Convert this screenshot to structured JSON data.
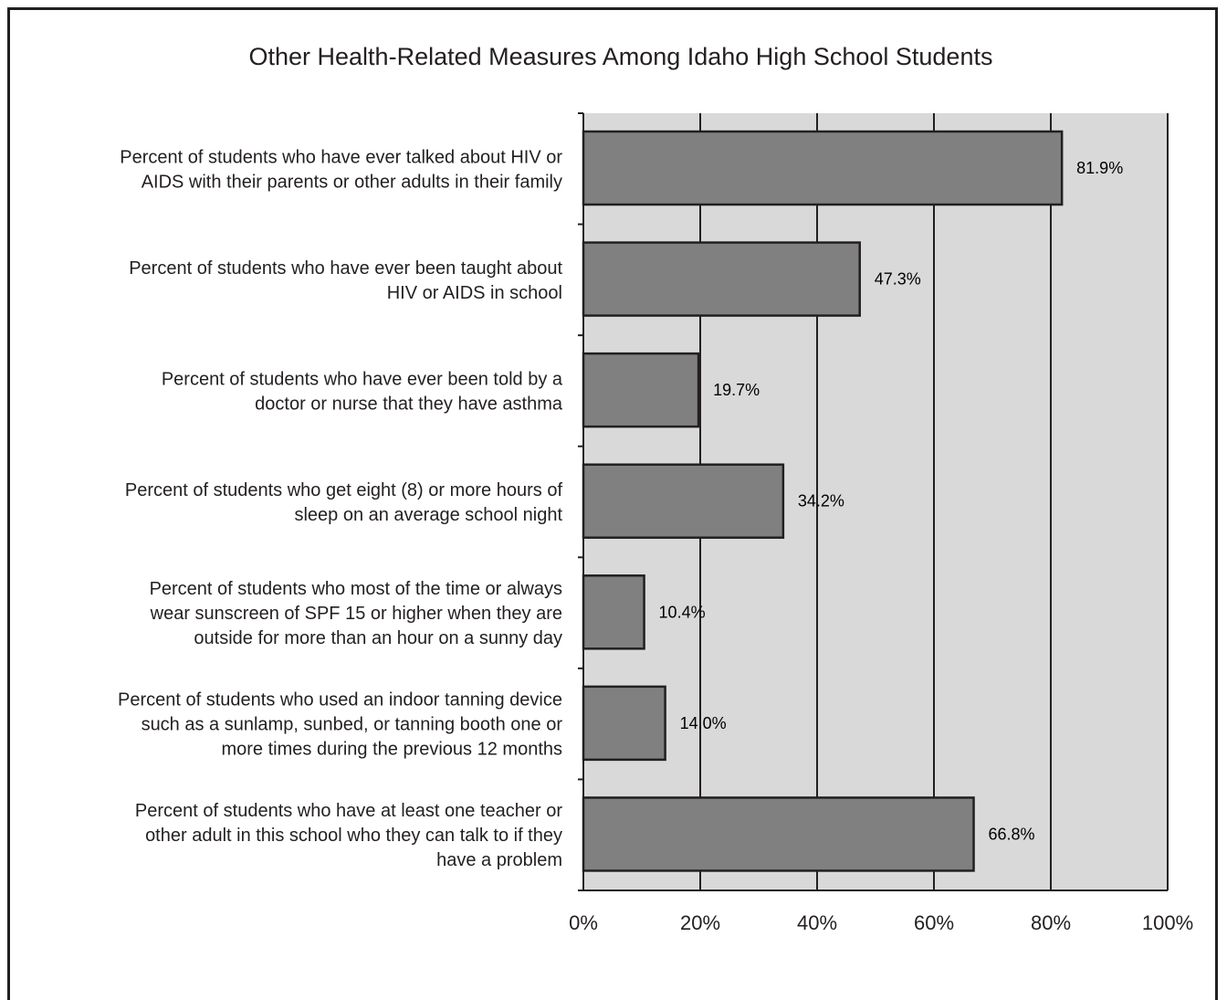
{
  "chart_data": {
    "type": "bar",
    "orientation": "horizontal",
    "title": "Other Health-Related Measures Among Idaho High School Students",
    "categories": [
      [
        "Percent of students who have ever talked about HIV or",
        "AIDS with their parents or other adults in their family"
      ],
      [
        "Percent of students who have ever been taught about",
        "HIV or AIDS in school"
      ],
      [
        "Percent of students who have ever been told by a",
        "doctor or nurse that they have asthma"
      ],
      [
        "Percent of students who get eight (8) or more hours of",
        "sleep on an average school night"
      ],
      [
        "Percent of students who most of the time or always",
        "wear sunscreen of SPF 15 or higher when they are",
        "outside for more than an hour on a sunny day"
      ],
      [
        "Percent of students who used an indoor tanning device",
        "such as a sunlamp, sunbed, or tanning booth one or",
        "more times during the previous 12 months"
      ],
      [
        "Percent of students who have at least one teacher or",
        "other adult in this school who they can talk to if they",
        "have a problem"
      ]
    ],
    "values": [
      81.9,
      47.3,
      19.7,
      34.2,
      10.4,
      14.0,
      66.8
    ],
    "value_labels": [
      "81.9%",
      "47.3%",
      "19.7%",
      "34.2%",
      "10.4%",
      "14.0%",
      "66.8%"
    ],
    "xlim": [
      0,
      100
    ],
    "xticks": [
      0,
      20,
      40,
      60,
      80,
      100
    ],
    "xtick_labels": [
      "0%",
      "20%",
      "40%",
      "60%",
      "80%",
      "100%"
    ],
    "grid": true,
    "colors": {
      "bar": "#808080",
      "bar_stroke": "#231f20",
      "plot_background": "#d9d9d9",
      "gridline": "#231f20",
      "text": "#231f20"
    }
  }
}
